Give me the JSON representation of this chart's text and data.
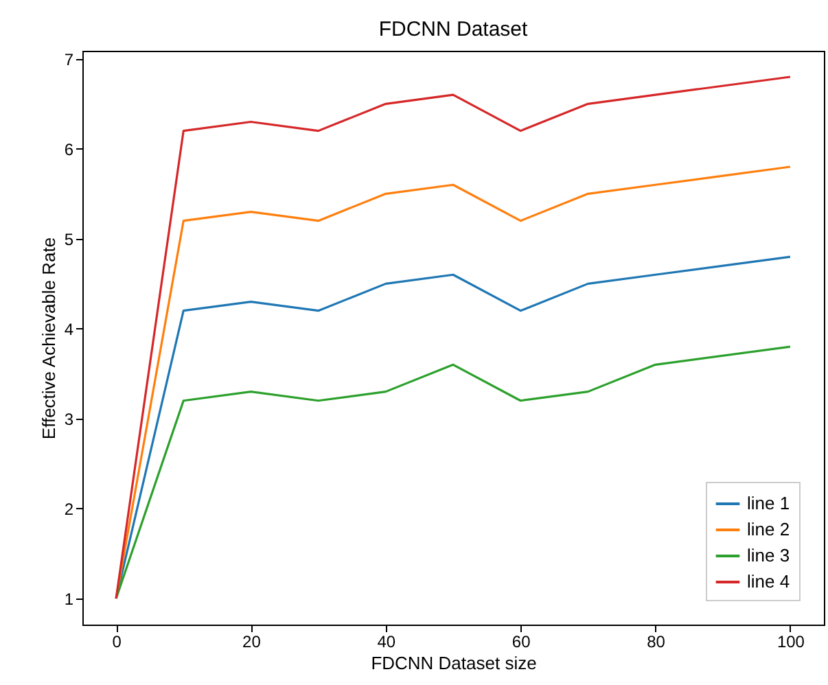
{
  "chart_data": {
    "type": "line",
    "title": "FDCNN Dataset",
    "xlabel": "FDCNN Dataset size",
    "ylabel": "Effective Achievable Rate",
    "x": [
      0,
      10,
      20,
      30,
      40,
      50,
      60,
      70,
      80,
      100
    ],
    "series": [
      {
        "name": "line 1",
        "color": "#1f77b4",
        "values": [
          1,
          4.2,
          4.3,
          4.2,
          4.5,
          4.6,
          4.2,
          4.5,
          4.6,
          4.8
        ]
      },
      {
        "name": "line 2",
        "color": "#ff7f0e",
        "values": [
          1,
          5.2,
          5.3,
          5.2,
          5.5,
          5.6,
          5.2,
          5.5,
          5.6,
          5.8
        ]
      },
      {
        "name": "line 3",
        "color": "#2ca02c",
        "values": [
          1,
          3.2,
          3.3,
          3.2,
          3.3,
          3.6,
          3.2,
          3.3,
          3.6,
          3.8
        ]
      },
      {
        "name": "line 4",
        "color": "#d62728",
        "values": [
          1,
          6.2,
          6.3,
          6.2,
          6.5,
          6.6,
          6.2,
          6.5,
          6.6,
          6.8
        ]
      }
    ],
    "xlim": [
      -5,
      105
    ],
    "xticks": [
      0,
      20,
      40,
      60,
      80,
      100
    ],
    "ylim": [
      0.71,
      7.09
    ],
    "yticks": [
      1,
      2,
      3,
      4,
      5,
      6,
      7
    ],
    "grid": false,
    "legend": "bottom right",
    "marker": "none",
    "line_style": "solid"
  }
}
